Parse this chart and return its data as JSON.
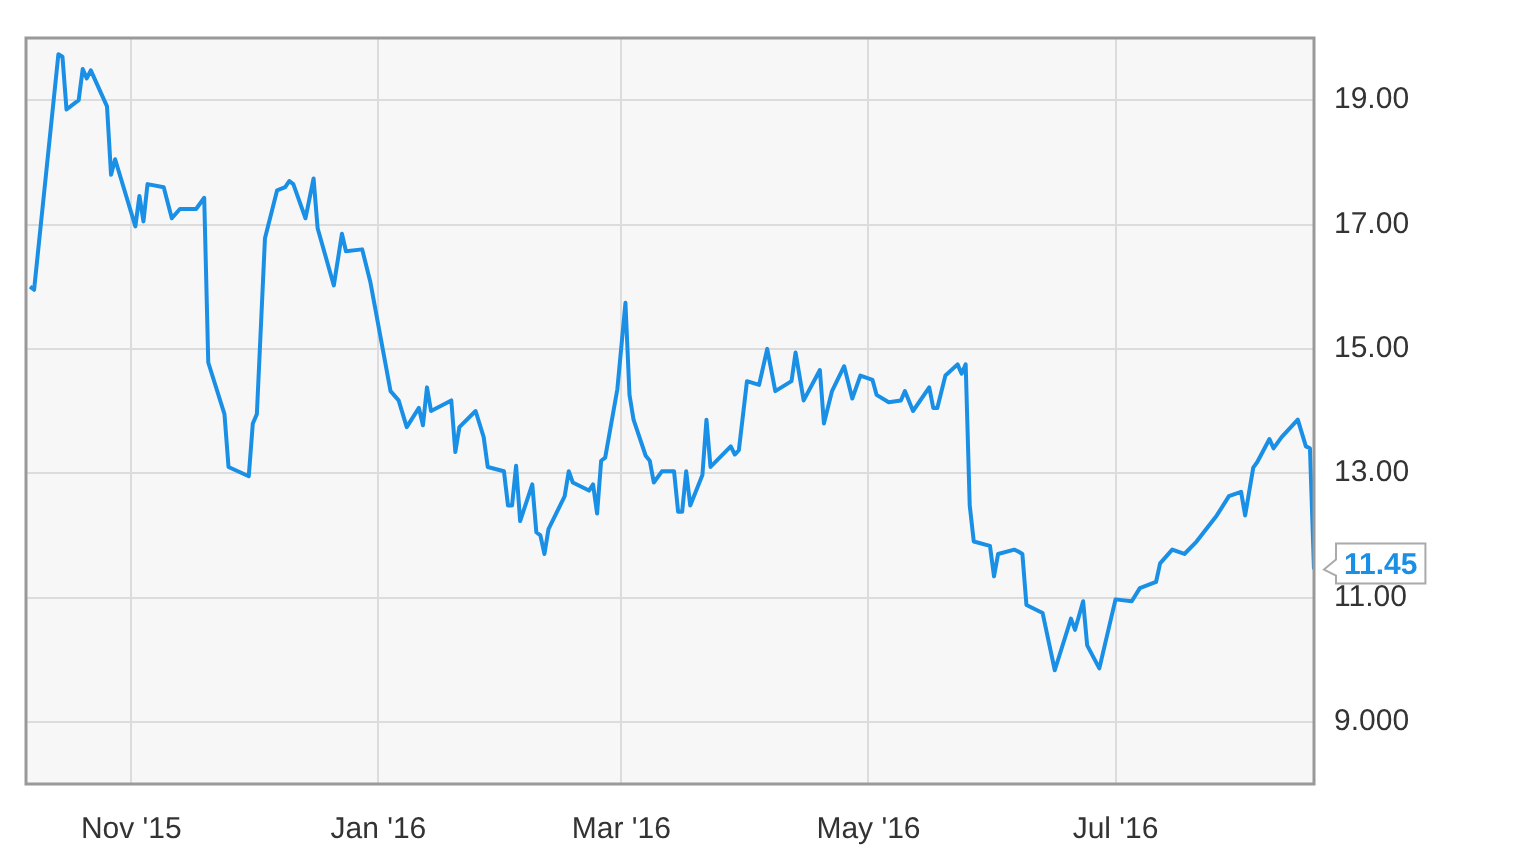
{
  "chart_data": {
    "type": "line",
    "x": [
      "2015-10-07",
      "2015-10-08",
      "2015-10-14",
      "2015-10-15",
      "2015-10-16",
      "2015-10-19",
      "2015-10-20",
      "2015-10-21",
      "2015-10-22",
      "2015-10-26",
      "2015-10-27",
      "2015-10-28",
      "2015-11-02",
      "2015-11-03",
      "2015-11-04",
      "2015-11-05",
      "2015-11-09",
      "2015-11-11",
      "2015-11-13",
      "2015-11-17",
      "2015-11-19",
      "2015-11-20",
      "2015-11-24",
      "2015-11-25",
      "2015-11-30",
      "2015-12-01",
      "2015-12-02",
      "2015-12-04",
      "2015-12-07",
      "2015-12-09",
      "2015-12-10",
      "2015-12-11",
      "2015-12-14",
      "2015-12-16",
      "2015-12-17",
      "2015-12-21",
      "2015-12-23",
      "2015-12-24",
      "2015-12-28",
      "2015-12-30",
      "2016-01-04",
      "2016-01-06",
      "2016-01-08",
      "2016-01-11",
      "2016-01-12",
      "2016-01-13",
      "2016-01-14",
      "2016-01-19",
      "2016-01-20",
      "2016-01-21",
      "2016-01-25",
      "2016-01-27",
      "2016-01-28",
      "2016-02-01",
      "2016-02-02",
      "2016-02-03",
      "2016-02-04",
      "2016-02-05",
      "2016-02-08",
      "2016-02-09",
      "2016-02-10",
      "2016-02-11",
      "2016-02-12",
      "2016-02-16",
      "2016-02-17",
      "2016-02-18",
      "2016-02-22",
      "2016-02-23",
      "2016-02-24",
      "2016-02-25",
      "2016-02-26",
      "2016-02-29",
      "2016-03-02",
      "2016-03-03",
      "2016-03-04",
      "2016-03-07",
      "2016-03-08",
      "2016-03-09",
      "2016-03-11",
      "2016-03-14",
      "2016-03-15",
      "2016-03-16",
      "2016-03-17",
      "2016-03-18",
      "2016-03-21",
      "2016-03-22",
      "2016-03-23",
      "2016-03-28",
      "2016-03-29",
      "2016-03-30",
      "2016-04-01",
      "2016-04-04",
      "2016-04-06",
      "2016-04-08",
      "2016-04-12",
      "2016-04-13",
      "2016-04-15",
      "2016-04-19",
      "2016-04-20",
      "2016-04-22",
      "2016-04-25",
      "2016-04-27",
      "2016-04-29",
      "2016-05-02",
      "2016-05-03",
      "2016-05-06",
      "2016-05-09",
      "2016-05-10",
      "2016-05-12",
      "2016-05-16",
      "2016-05-17",
      "2016-05-18",
      "2016-05-20",
      "2016-05-23",
      "2016-05-24",
      "2016-05-25",
      "2016-05-26",
      "2016-05-27",
      "2016-05-31",
      "2016-06-01",
      "2016-06-02",
      "2016-06-06",
      "2016-06-07",
      "2016-06-08",
      "2016-06-09",
      "2016-06-13",
      "2016-06-16",
      "2016-06-20",
      "2016-06-21",
      "2016-06-23",
      "2016-06-24",
      "2016-06-27",
      "2016-07-01",
      "2016-07-05",
      "2016-07-07",
      "2016-07-11",
      "2016-07-12",
      "2016-07-15",
      "2016-07-18",
      "2016-07-21",
      "2016-07-26",
      "2016-07-29",
      "2016-08-01",
      "2016-08-02",
      "2016-08-04",
      "2016-08-05",
      "2016-08-08",
      "2016-08-09",
      "2016-08-11",
      "2016-08-15",
      "2016-08-17",
      "2016-08-18",
      "2016-08-19"
    ],
    "series": [
      {
        "color": "#1a8fe6",
        "values": [
          16.0,
          15.95,
          19.74,
          19.7,
          18.85,
          19.0,
          19.5,
          19.35,
          19.48,
          18.9,
          17.8,
          18.05,
          16.97,
          17.46,
          17.05,
          17.65,
          17.6,
          17.1,
          17.25,
          17.25,
          17.43,
          14.78,
          13.95,
          13.1,
          12.95,
          13.8,
          13.95,
          16.78,
          17.55,
          17.6,
          17.7,
          17.65,
          17.1,
          17.74,
          16.94,
          16.02,
          16.85,
          16.57,
          16.6,
          16.08,
          14.32,
          14.17,
          13.74,
          14.05,
          13.77,
          14.38,
          14.0,
          14.17,
          13.34,
          13.74,
          14.0,
          13.58,
          13.1,
          13.03,
          12.48,
          12.48,
          13.12,
          12.23,
          12.82,
          12.05,
          12.0,
          11.7,
          12.1,
          12.63,
          13.03,
          12.85,
          12.72,
          12.82,
          12.35,
          13.2,
          13.25,
          14.35,
          15.74,
          14.26,
          13.86,
          13.28,
          13.2,
          12.85,
          13.03,
          13.03,
          12.38,
          12.38,
          13.03,
          12.48,
          12.97,
          13.86,
          13.1,
          13.43,
          13.3,
          13.37,
          14.48,
          14.42,
          15.0,
          14.32,
          14.48,
          14.94,
          14.17,
          14.66,
          13.8,
          14.32,
          14.72,
          14.2,
          14.57,
          14.5,
          14.26,
          14.14,
          14.17,
          14.32,
          14.0,
          14.38,
          14.05,
          14.05,
          14.57,
          14.75,
          14.6,
          14.75,
          12.48,
          11.9,
          11.83,
          11.34,
          11.7,
          11.77,
          11.74,
          11.7,
          10.88,
          10.75,
          9.83,
          10.66,
          10.48,
          10.94,
          10.23,
          9.86,
          10.97,
          10.94,
          11.15,
          11.25,
          11.55,
          11.77,
          11.7,
          11.9,
          12.32,
          12.63,
          12.7,
          12.32,
          13.09,
          13.18,
          13.55,
          13.4,
          13.58,
          13.86,
          13.43,
          13.4,
          11.45
        ]
      }
    ],
    "xlim": [
      "2015-10-06",
      "2016-08-19"
    ],
    "xticks": [
      {
        "value": "2015-11-01",
        "label": "Nov '15"
      },
      {
        "value": "2016-01-01",
        "label": "Jan '16"
      },
      {
        "value": "2016-03-01",
        "label": "Mar '16"
      },
      {
        "value": "2016-05-01",
        "label": "May '16"
      },
      {
        "value": "2016-07-01",
        "label": "Jul '16"
      }
    ],
    "ylim": [
      8,
      20
    ],
    "yticks": [
      {
        "value": 9,
        "label": "9.000"
      },
      {
        "value": 11,
        "label": "11.00"
      },
      {
        "value": 13,
        "label": "13.00"
      },
      {
        "value": 15,
        "label": "15.00"
      },
      {
        "value": 17,
        "label": "17.00"
      },
      {
        "value": 19,
        "label": "19.00"
      }
    ],
    "annotations": [
      {
        "text": "11.45",
        "x": "2016-08-19",
        "y": 11.45
      }
    ],
    "grid": true,
    "marker": "none",
    "line_style": "solid",
    "legend": false
  }
}
